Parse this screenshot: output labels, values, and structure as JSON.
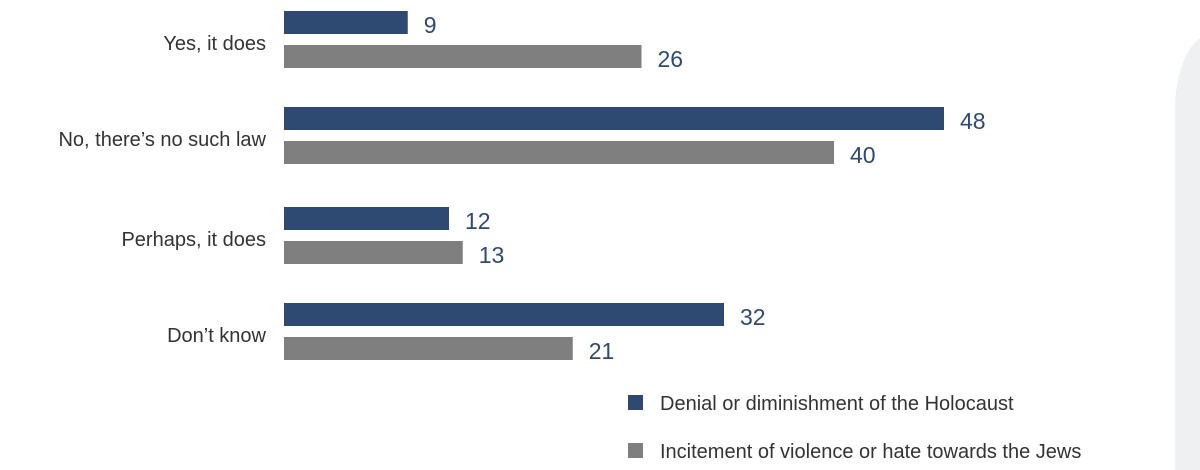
{
  "chart_data": {
    "type": "bar",
    "orientation": "horizontal",
    "categories": [
      "Yes, it does",
      "No, there’s no such law",
      "Perhaps, it does",
      "Don’t know"
    ],
    "series": [
      {
        "name": "Denial or diminishment of the Holocaust",
        "values": [
          9,
          48,
          12,
          32
        ],
        "color": "#2e4a73"
      },
      {
        "name": "Incitement of violence or hate towards the Jews",
        "values": [
          26,
          40,
          13,
          21
        ],
        "color": "#7f7f7f"
      }
    ],
    "xlim": [
      0,
      48
    ],
    "grid": false,
    "legend_position": "bottom-right"
  }
}
